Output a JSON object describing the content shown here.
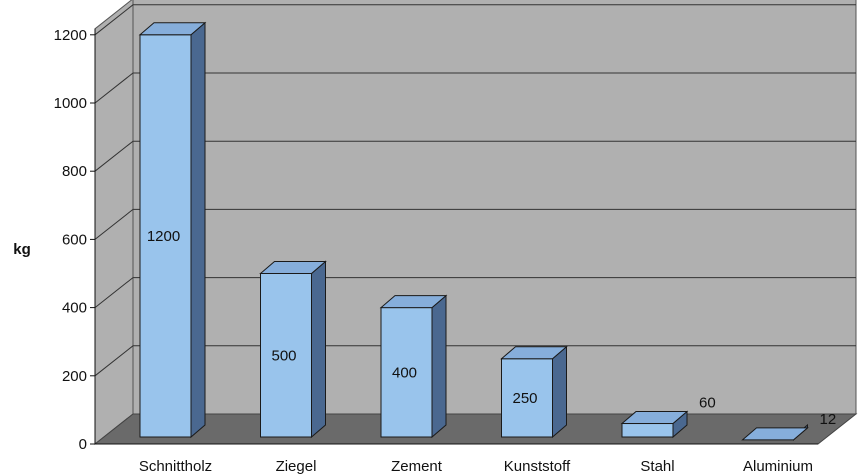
{
  "chart_data": {
    "type": "bar",
    "title": "",
    "xlabel": "",
    "ylabel": "kg",
    "ylim": [
      0,
      1200
    ],
    "yticks": [
      0,
      200,
      400,
      600,
      800,
      1000,
      1200
    ],
    "grid": true,
    "three_d": true,
    "categories": [
      "Schnittholz",
      "Ziegel",
      "Zement",
      "Kunststoff",
      "Stahl",
      "Aluminium"
    ],
    "values": [
      1200,
      500,
      400,
      250,
      60,
      12
    ],
    "data_labels": [
      "1200",
      "500",
      "400",
      "250",
      "60",
      "12"
    ],
    "colors": {
      "wall": "#b0b0b0",
      "floor": "#6a6a6a",
      "bar_front": "#99c4ec",
      "bar_top": "#86aedb",
      "bar_side": "#4a6890",
      "bar_edge": "#1a1a1a"
    }
  }
}
